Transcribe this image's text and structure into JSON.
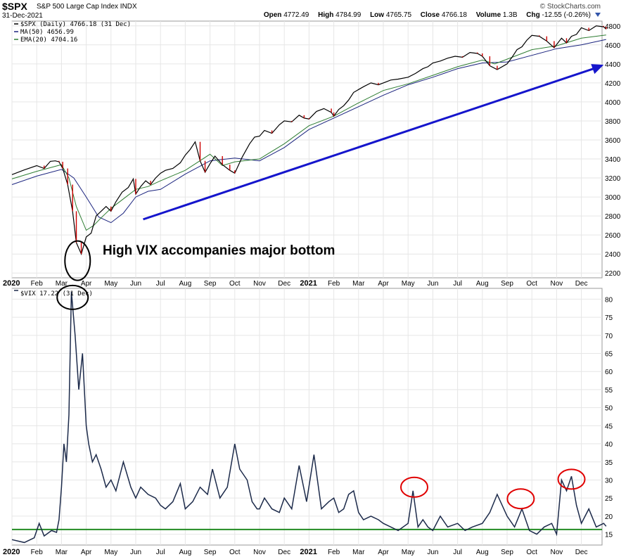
{
  "header": {
    "symbol": "$SPX",
    "name": "S&P 500 Large Cap Index",
    "exchange": "INDX",
    "date": "31-Dec-2021",
    "credit": "© StockCharts.com",
    "open_label": "Open",
    "open": "4772.49",
    "high_label": "High",
    "high": "4784.99",
    "low_label": "Low",
    "low": "4765.75",
    "close_label": "Close",
    "close": "4766.18",
    "volume_label": "Volume",
    "volume": "1.3B",
    "chg_label": "Chg",
    "chg": "-12.55 (-0.26%)"
  },
  "colors": {
    "price": "#000000",
    "ma50": "#1a237e",
    "ema20": "#2e7d32",
    "vix": "#1c2a4a",
    "vix_hline": "#228B22",
    "arrow": "#1515cc",
    "circle_black": "#000000",
    "circle_red": "#e00000",
    "grid": "#e6e6e6"
  },
  "annotation": "High VIX accompanies major bottom",
  "chart_data": [
    {
      "type": "line",
      "panel": "price",
      "ylim": [
        2150,
        4850
      ],
      "yticks": [
        2200,
        2400,
        2600,
        2800,
        3000,
        3200,
        3400,
        3600,
        3800,
        4000,
        4200,
        4400,
        4600,
        4800
      ],
      "x_months": [
        "2020",
        "Feb",
        "Mar",
        "Apr",
        "May",
        "Jun",
        "Jul",
        "Aug",
        "Sep",
        "Oct",
        "Nov",
        "Dec",
        "2021",
        "Feb",
        "Mar",
        "Apr",
        "May",
        "Jun",
        "Jul",
        "Aug",
        "Sep",
        "Oct",
        "Nov",
        "Dec"
      ],
      "legend": [
        {
          "label": "$SPX (Daily) 4766.18 (31 Dec)"
        },
        {
          "label": "MA(50) 4656.99"
        },
        {
          "label": "EMA(20) 4704.16"
        }
      ],
      "series": [
        {
          "name": "$SPX",
          "x": [
            0,
            0.5,
            1,
            1.3,
            1.55,
            1.75,
            1.9,
            2.05,
            2.25,
            2.45,
            2.6,
            2.8,
            3,
            3.2,
            3.4,
            3.6,
            3.8,
            4,
            4.2,
            4.45,
            4.7,
            4.9,
            5,
            5.2,
            5.4,
            5.6,
            5.8,
            6,
            6.2,
            6.5,
            6.8,
            7,
            7.2,
            7.4,
            7.6,
            7.8,
            8,
            8.2,
            8.5,
            8.8,
            9,
            9.3,
            9.6,
            9.8,
            10,
            10.2,
            10.5,
            10.8,
            11,
            11.3,
            11.6,
            11.8,
            12,
            12.3,
            12.6,
            12.9,
            13,
            13.2,
            13.4,
            13.6,
            13.8,
            14,
            14.2,
            14.5,
            14.8,
            15,
            15.3,
            15.6,
            16,
            16.3,
            16.6,
            16.8,
            17,
            17.3,
            17.6,
            17.9,
            18.2,
            18.5,
            18.8,
            19,
            19.3,
            19.6,
            20,
            20.2,
            20.4,
            20.6,
            20.8,
            21,
            21.3,
            21.6,
            21.9,
            22.2,
            22.4,
            22.6,
            22.8,
            23,
            23.3,
            23.6,
            23.9,
            24
          ],
          "values": [
            3235,
            3285,
            3330,
            3300,
            3375,
            3380,
            3370,
            3300,
            3130,
            2850,
            2520,
            2400,
            2580,
            2620,
            2800,
            2850,
            2900,
            2850,
            2950,
            3050,
            3100,
            3190,
            3030,
            3110,
            3170,
            3130,
            3200,
            3250,
            3280,
            3300,
            3360,
            3440,
            3500,
            3580,
            3380,
            3260,
            3350,
            3430,
            3340,
            3280,
            3250,
            3420,
            3560,
            3630,
            3640,
            3700,
            3670,
            3760,
            3800,
            3790,
            3860,
            3830,
            3820,
            3900,
            3930,
            3890,
            3850,
            3920,
            3960,
            4020,
            4100,
            4130,
            4160,
            4200,
            4180,
            4200,
            4230,
            4240,
            4260,
            4300,
            4350,
            4370,
            4410,
            4430,
            4460,
            4480,
            4470,
            4520,
            4510,
            4480,
            4380,
            4340,
            4400,
            4470,
            4550,
            4580,
            4650,
            4700,
            4690,
            4640,
            4570,
            4670,
            4620,
            4690,
            4710,
            4780,
            4750,
            4800,
            4790,
            4766
          ]
        },
        {
          "name": "MA(50)",
          "x": [
            0,
            1,
            2,
            2.5,
            3,
            3.5,
            4,
            4.5,
            5,
            5.5,
            6,
            7,
            8,
            9,
            10,
            11,
            12,
            13,
            14,
            15,
            16,
            17,
            18,
            19,
            20,
            21,
            22,
            23,
            24
          ],
          "values": [
            3130,
            3220,
            3290,
            3200,
            3000,
            2790,
            2730,
            2830,
            3000,
            3060,
            3080,
            3240,
            3380,
            3410,
            3380,
            3520,
            3710,
            3830,
            3950,
            4070,
            4180,
            4260,
            4350,
            4410,
            4420,
            4490,
            4560,
            4600,
            4657
          ]
        },
        {
          "name": "EMA(20)",
          "x": [
            0,
            1,
            2,
            2.3,
            2.6,
            3,
            3.3,
            3.6,
            4,
            4.5,
            5,
            5.5,
            6,
            7,
            8,
            8.5,
            9,
            10,
            11,
            12,
            13,
            14,
            15,
            16,
            17,
            18,
            19,
            19.5,
            20,
            21,
            22,
            23,
            24
          ],
          "values": [
            3190,
            3270,
            3340,
            3200,
            2900,
            2650,
            2700,
            2780,
            2880,
            2980,
            3080,
            3110,
            3170,
            3280,
            3450,
            3330,
            3370,
            3400,
            3560,
            3750,
            3850,
            3990,
            4120,
            4190,
            4280,
            4370,
            4440,
            4400,
            4450,
            4550,
            4590,
            4670,
            4704
          ]
        }
      ],
      "trend_arrow": {
        "from": {
          "x": 5.3,
          "y": 2765
        },
        "to": {
          "x": 23.9,
          "y": 4390
        }
      },
      "circles": [
        {
          "x": 2.65,
          "y": 2330
        }
      ]
    },
    {
      "type": "line",
      "panel": "vix",
      "ylim": [
        12,
        83
      ],
      "yticks": [
        15,
        20,
        25,
        30,
        35,
        40,
        45,
        50,
        55,
        60,
        65,
        70,
        75,
        80
      ],
      "x_months": [
        "2020",
        "Feb",
        "Mar",
        "Apr",
        "May",
        "Jun",
        "Jul",
        "Aug",
        "Sep",
        "Oct",
        "Nov",
        "Dec",
        "2021",
        "Feb",
        "Mar",
        "Apr",
        "May",
        "Jun",
        "Jul",
        "Aug",
        "Sep",
        "Oct",
        "Nov",
        "Dec"
      ],
      "legend": [
        {
          "label": "$VIX 17.22 (31 Dec)"
        }
      ],
      "series": [
        {
          "name": "$VIX",
          "x": [
            0,
            0.5,
            0.9,
            1.1,
            1.3,
            1.6,
            1.8,
            1.9,
            2,
            2.1,
            2.2,
            2.3,
            2.4,
            2.55,
            2.7,
            2.85,
            3,
            3.1,
            3.25,
            3.4,
            3.6,
            3.8,
            4,
            4.2,
            4.5,
            4.8,
            5,
            5.2,
            5.5,
            5.8,
            6,
            6.2,
            6.5,
            6.8,
            7,
            7.3,
            7.6,
            7.9,
            8.1,
            8.4,
            8.7,
            9,
            9.2,
            9.5,
            9.7,
            9.9,
            10,
            10.2,
            10.5,
            10.8,
            11,
            11.3,
            11.6,
            11.9,
            12.2,
            12.5,
            12.8,
            13,
            13.2,
            13.4,
            13.6,
            13.8,
            14,
            14.2,
            14.5,
            14.8,
            15,
            15.3,
            15.6,
            16,
            16.2,
            16.4,
            16.6,
            16.8,
            17,
            17.3,
            17.6,
            18,
            18.3,
            18.6,
            19,
            19.3,
            19.6,
            20,
            20.3,
            20.6,
            20.9,
            21.2,
            21.5,
            21.8,
            22,
            22.2,
            22.4,
            22.6,
            22.8,
            23,
            23.3,
            23.6,
            23.9,
            24
          ],
          "values": [
            13.5,
            12.7,
            14,
            18,
            14.5,
            16,
            15.5,
            19,
            28,
            40,
            35,
            48,
            82,
            70,
            55,
            65,
            45,
            40,
            35,
            37,
            33,
            28,
            30,
            27,
            35,
            28,
            25,
            28,
            26,
            25,
            23,
            22,
            24,
            29,
            22,
            24,
            28,
            26,
            33,
            25,
            28,
            40,
            33,
            30,
            24,
            22,
            22,
            25,
            22,
            21,
            25,
            22,
            34,
            24,
            37,
            22,
            24,
            25,
            21,
            22,
            26,
            27,
            21,
            19,
            20,
            19,
            18,
            17,
            16,
            18,
            27,
            17,
            19,
            17,
            16,
            20,
            17,
            18,
            16,
            17,
            18,
            21,
            26,
            20,
            17,
            22,
            16,
            15,
            17,
            18,
            15,
            30,
            27,
            31,
            23,
            18,
            22,
            17,
            18,
            17.2
          ]
        }
      ],
      "hline": 16.3,
      "circles": [
        {
          "x": 2.45,
          "y": 80.5
        },
        {
          "x": 16.25,
          "y": 28
        },
        {
          "x": 20.55,
          "y": 24.8
        },
        {
          "x": 22.6,
          "y": 30.2
        }
      ]
    }
  ]
}
